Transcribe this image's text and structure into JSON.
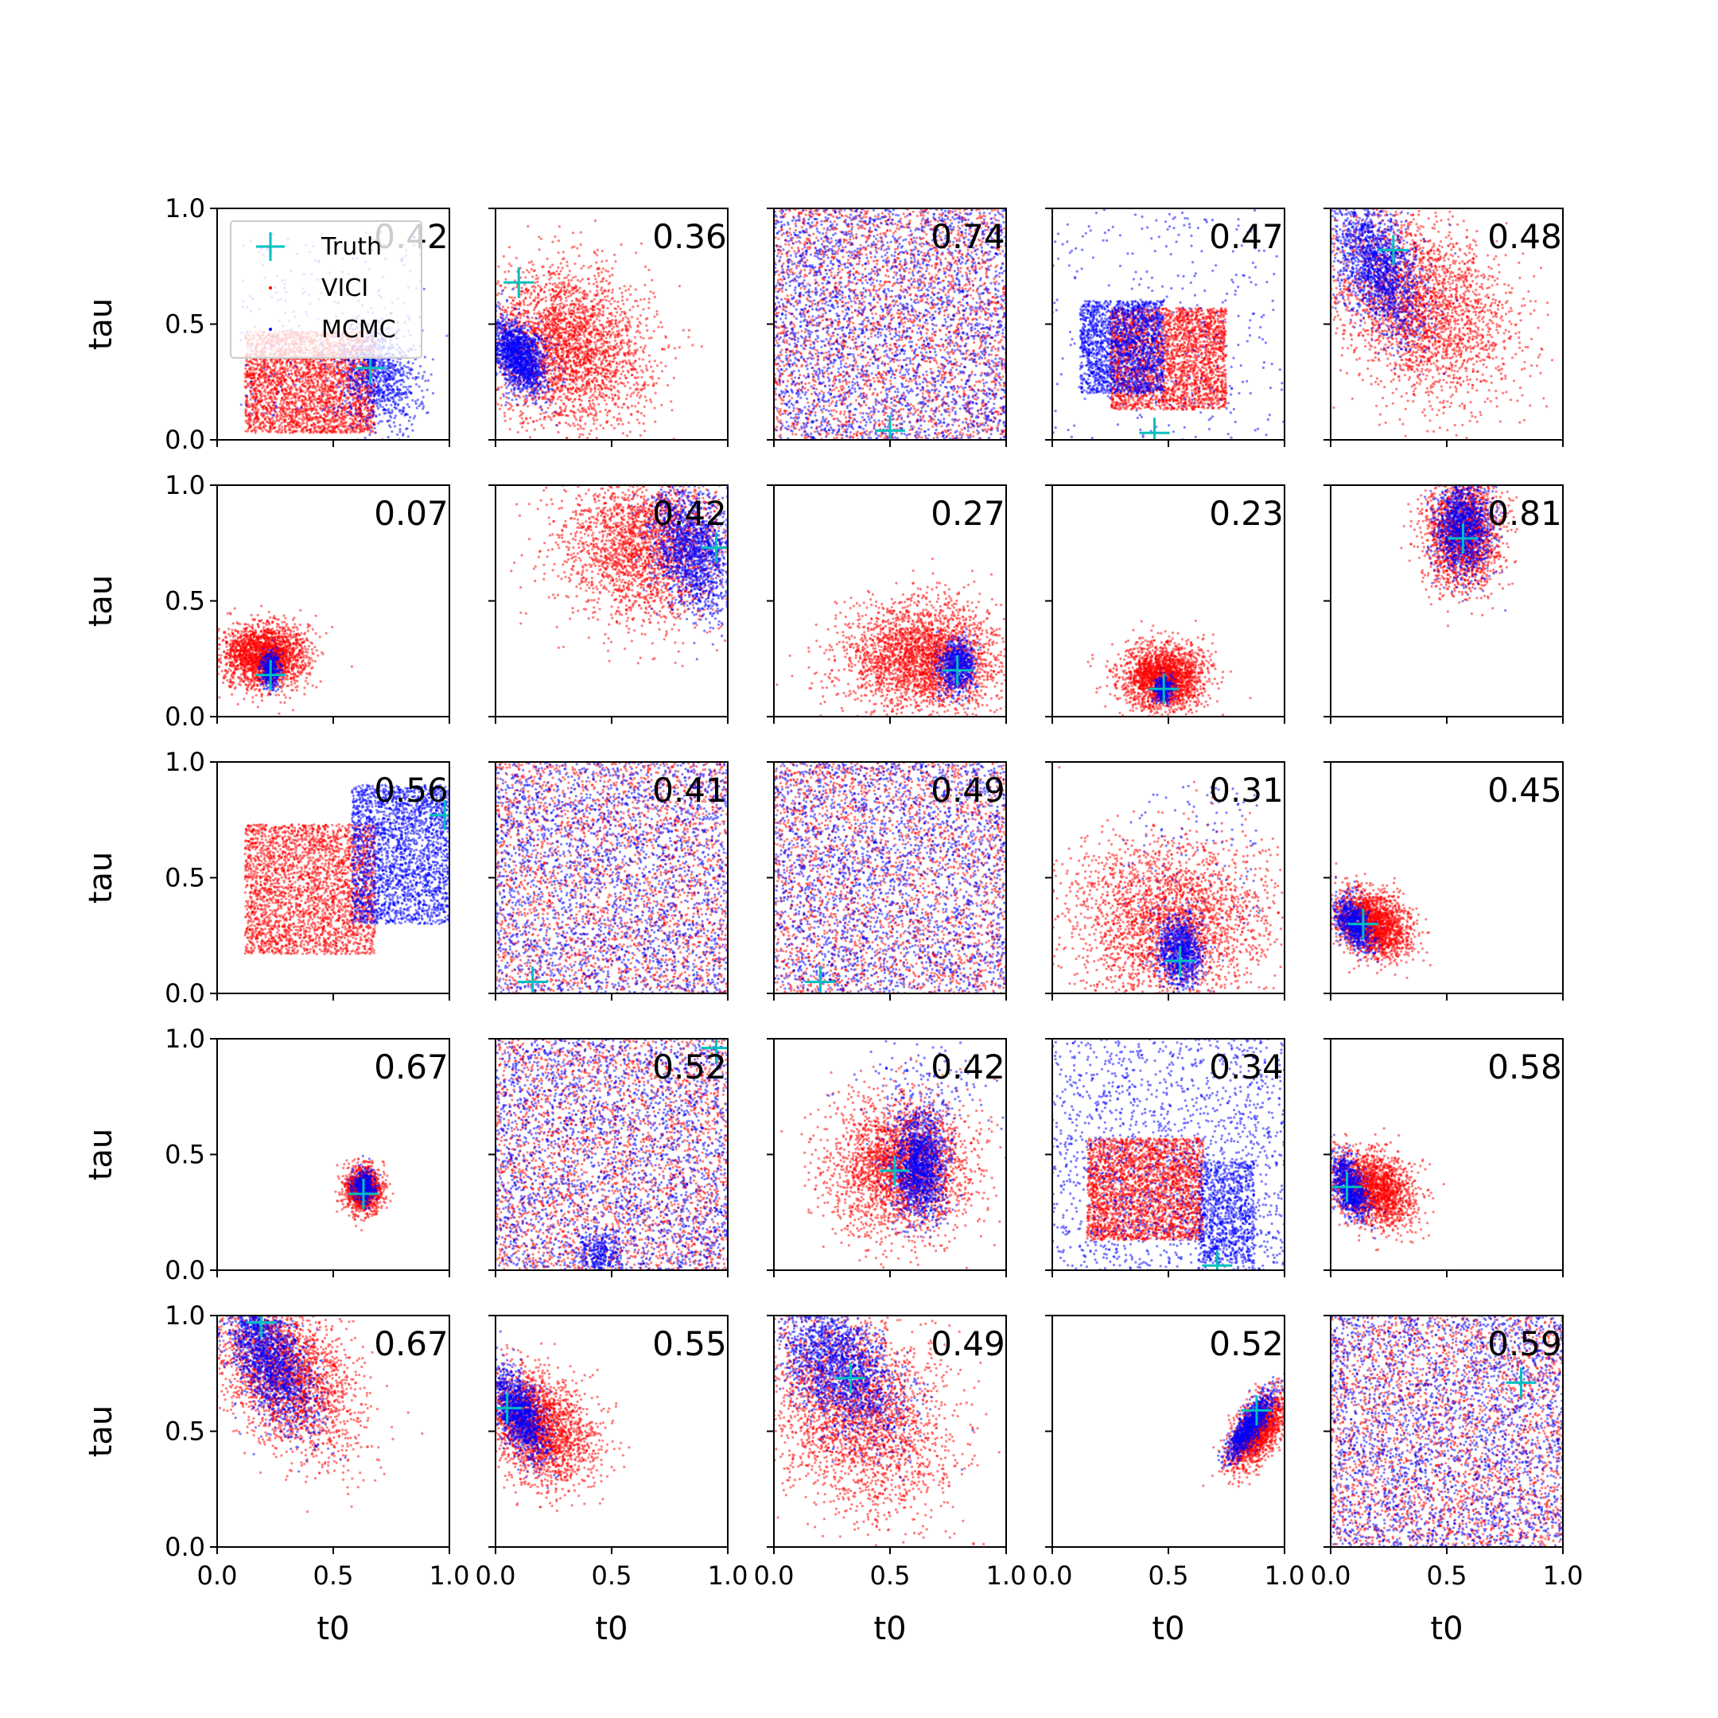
{
  "colors": {
    "vici": "#ff0000",
    "mcmc": "#0000ff",
    "truth": "#00bfbf",
    "axis": "#000000"
  },
  "legend": {
    "truth_label": "Truth",
    "vici_label": "VICI",
    "mcmc_label": "MCMC",
    "placement": "upper-left of first panel"
  },
  "chart_data": {
    "type": "scatter",
    "layout": {
      "rows": 5,
      "cols": 5
    },
    "xlabel": "t0",
    "ylabel": "tau",
    "xlim": [
      0,
      1
    ],
    "ylim": [
      0,
      1
    ],
    "tick_labels": [
      "0.0",
      "0.5",
      "1.0"
    ],
    "series_names": [
      "Truth",
      "VICI",
      "MCMC"
    ],
    "panels": [
      {
        "score": "0.42",
        "truth": [
          0.66,
          0.31
        ],
        "vici": [
          {
            "mx": 0.4,
            "my": 0.25,
            "sx": 0.28,
            "sy": 0.22,
            "rho": 0.0,
            "n": 3000,
            "fill": true
          }
        ],
        "mcmc": [
          {
            "mx": 0.7,
            "my": 0.28,
            "sx": 0.08,
            "sy": 0.12,
            "rho": -0.2,
            "n": 900,
            "fill": false
          },
          {
            "mx": 0.5,
            "my": 0.5,
            "sx": 0.4,
            "sy": 0.4,
            "rho": 0.0,
            "n": 250,
            "fill": true
          }
        ]
      },
      {
        "score": "0.36",
        "truth": [
          0.1,
          0.68
        ],
        "vici": [
          {
            "mx": 0.3,
            "my": 0.4,
            "sx": 0.18,
            "sy": 0.17,
            "rho": -0.1,
            "n": 3000,
            "fill": false
          }
        ],
        "mcmc": [
          {
            "mx": 0.1,
            "my": 0.36,
            "sx": 0.06,
            "sy": 0.08,
            "rho": -0.4,
            "n": 1500,
            "fill": false
          }
        ]
      },
      {
        "score": "0.74",
        "truth": [
          0.5,
          0.04
        ],
        "vici": [
          {
            "mx": 0.5,
            "my": 0.5,
            "sx": 0.5,
            "sy": 0.5,
            "rho": 0.0,
            "n": 2600,
            "fill": true
          }
        ],
        "mcmc": [
          {
            "mx": 0.5,
            "my": 0.5,
            "sx": 0.5,
            "sy": 0.5,
            "rho": 0.0,
            "n": 2600,
            "fill": true
          }
        ]
      },
      {
        "score": "0.47",
        "truth": [
          0.44,
          0.03
        ],
        "vici": [
          {
            "mx": 0.5,
            "my": 0.35,
            "sx": 0.25,
            "sy": 0.22,
            "rho": -0.2,
            "n": 2800,
            "fill": true
          }
        ],
        "mcmc": [
          {
            "mx": 0.3,
            "my": 0.4,
            "sx": 0.18,
            "sy": 0.2,
            "rho": -0.6,
            "n": 1800,
            "fill": true
          },
          {
            "mx": 0.5,
            "my": 0.5,
            "sx": 0.5,
            "sy": 0.5,
            "rho": 0.0,
            "n": 300,
            "fill": true
          }
        ]
      },
      {
        "score": "0.48",
        "truth": [
          0.27,
          0.82
        ],
        "vici": [
          {
            "mx": 0.38,
            "my": 0.58,
            "sx": 0.2,
            "sy": 0.2,
            "rho": -0.3,
            "n": 2800,
            "fill": false
          }
        ],
        "mcmc": [
          {
            "mx": 0.2,
            "my": 0.75,
            "sx": 0.1,
            "sy": 0.15,
            "rho": -0.5,
            "n": 1600,
            "fill": false
          }
        ]
      },
      {
        "score": "0.07",
        "truth": [
          0.23,
          0.18
        ],
        "vici": [
          {
            "mx": 0.2,
            "my": 0.26,
            "sx": 0.09,
            "sy": 0.07,
            "rho": 0.0,
            "n": 2200,
            "fill": false
          }
        ],
        "mcmc": [
          {
            "mx": 0.23,
            "my": 0.2,
            "sx": 0.02,
            "sy": 0.04,
            "rho": 0.0,
            "n": 400,
            "fill": false
          }
        ]
      },
      {
        "score": "0.42",
        "truth": [
          0.95,
          0.73
        ],
        "vici": [
          {
            "mx": 0.65,
            "my": 0.75,
            "sx": 0.18,
            "sy": 0.17,
            "rho": 0.0,
            "n": 2600,
            "fill": false
          }
        ],
        "mcmc": [
          {
            "mx": 0.85,
            "my": 0.72,
            "sx": 0.09,
            "sy": 0.14,
            "rho": -0.3,
            "n": 1500,
            "fill": false
          }
        ]
      },
      {
        "score": "0.27",
        "truth": [
          0.79,
          0.2
        ],
        "vici": [
          {
            "mx": 0.65,
            "my": 0.25,
            "sx": 0.17,
            "sy": 0.12,
            "rho": 0.0,
            "n": 2800,
            "fill": false
          }
        ],
        "mcmc": [
          {
            "mx": 0.79,
            "my": 0.22,
            "sx": 0.04,
            "sy": 0.06,
            "rho": 0.0,
            "n": 700,
            "fill": false
          }
        ]
      },
      {
        "score": "0.23",
        "truth": [
          0.48,
          0.12
        ],
        "vici": [
          {
            "mx": 0.48,
            "my": 0.17,
            "sx": 0.09,
            "sy": 0.07,
            "rho": 0.0,
            "n": 2200,
            "fill": false
          }
        ],
        "mcmc": [
          {
            "mx": 0.48,
            "my": 0.12,
            "sx": 0.02,
            "sy": 0.03,
            "rho": 0.0,
            "n": 300,
            "fill": false
          }
        ]
      },
      {
        "score": "0.81",
        "truth": [
          0.57,
          0.77
        ],
        "vici": [
          {
            "mx": 0.57,
            "my": 0.8,
            "sx": 0.08,
            "sy": 0.12,
            "rho": 0.0,
            "n": 2000,
            "fill": false
          }
        ],
        "mcmc": [
          {
            "mx": 0.57,
            "my": 0.82,
            "sx": 0.06,
            "sy": 0.1,
            "rho": 0.0,
            "n": 1200,
            "fill": false
          }
        ]
      },
      {
        "score": "0.56",
        "truth": [
          0.98,
          0.77
        ],
        "vici": [
          {
            "mx": 0.4,
            "my": 0.45,
            "sx": 0.28,
            "sy": 0.28,
            "rho": 0.0,
            "n": 2800,
            "fill": true
          }
        ],
        "mcmc": [
          {
            "mx": 0.8,
            "my": 0.6,
            "sx": 0.22,
            "sy": 0.3,
            "rho": 0.0,
            "n": 2400,
            "fill": true
          }
        ]
      },
      {
        "score": "0.41",
        "truth": [
          0.16,
          0.05
        ],
        "vici": [
          {
            "mx": 0.5,
            "my": 0.5,
            "sx": 0.5,
            "sy": 0.5,
            "rho": 0.0,
            "n": 2400,
            "fill": true
          }
        ],
        "mcmc": [
          {
            "mx": 0.5,
            "my": 0.5,
            "sx": 0.5,
            "sy": 0.5,
            "rho": 0.0,
            "n": 2400,
            "fill": true
          }
        ]
      },
      {
        "score": "0.49",
        "truth": [
          0.2,
          0.05
        ],
        "vici": [
          {
            "mx": 0.5,
            "my": 0.5,
            "sx": 0.5,
            "sy": 0.5,
            "rho": 0.0,
            "n": 2400,
            "fill": true
          }
        ],
        "mcmc": [
          {
            "mx": 0.5,
            "my": 0.5,
            "sx": 0.5,
            "sy": 0.5,
            "rho": 0.0,
            "n": 2400,
            "fill": true
          }
        ]
      },
      {
        "score": "0.31",
        "truth": [
          0.55,
          0.14
        ],
        "vici": [
          {
            "mx": 0.5,
            "my": 0.3,
            "sx": 0.22,
            "sy": 0.18,
            "rho": 0.0,
            "n": 2800,
            "fill": false
          }
        ],
        "mcmc": [
          {
            "mx": 0.55,
            "my": 0.18,
            "sx": 0.05,
            "sy": 0.08,
            "rho": 0.0,
            "n": 900,
            "fill": false
          },
          {
            "mx": 0.6,
            "my": 0.6,
            "sx": 0.3,
            "sy": 0.3,
            "rho": 0.0,
            "n": 120,
            "fill": true
          }
        ]
      },
      {
        "score": "0.45",
        "truth": [
          0.14,
          0.3
        ],
        "vici": [
          {
            "mx": 0.18,
            "my": 0.3,
            "sx": 0.08,
            "sy": 0.07,
            "rho": -0.3,
            "n": 2000,
            "fill": false
          }
        ],
        "mcmc": [
          {
            "mx": 0.1,
            "my": 0.3,
            "sx": 0.04,
            "sy": 0.06,
            "rho": -0.5,
            "n": 700,
            "fill": false
          }
        ]
      },
      {
        "score": "0.67",
        "truth": [
          0.63,
          0.33
        ],
        "vici": [
          {
            "mx": 0.63,
            "my": 0.35,
            "sx": 0.04,
            "sy": 0.05,
            "rho": 0.0,
            "n": 1200,
            "fill": false
          }
        ],
        "mcmc": [
          {
            "mx": 0.63,
            "my": 0.36,
            "sx": 0.025,
            "sy": 0.04,
            "rho": 0.0,
            "n": 400,
            "fill": false
          }
        ]
      },
      {
        "score": "0.52",
        "truth": [
          0.95,
          0.96
        ],
        "vici": [
          {
            "mx": 0.5,
            "my": 0.5,
            "sx": 0.5,
            "sy": 0.5,
            "rho": 0.0,
            "n": 2600,
            "fill": true
          }
        ],
        "mcmc": [
          {
            "mx": 0.5,
            "my": 0.5,
            "sx": 0.5,
            "sy": 0.5,
            "rho": 0.0,
            "n": 2400,
            "fill": true
          },
          {
            "mx": 0.45,
            "my": 0.08,
            "sx": 0.05,
            "sy": 0.05,
            "rho": 0.0,
            "n": 300,
            "fill": false
          }
        ]
      },
      {
        "score": "0.42",
        "truth": [
          0.52,
          0.43
        ],
        "vici": [
          {
            "mx": 0.55,
            "my": 0.45,
            "sx": 0.15,
            "sy": 0.15,
            "rho": 0.0,
            "n": 2800,
            "fill": false
          }
        ],
        "mcmc": [
          {
            "mx": 0.63,
            "my": 0.45,
            "sx": 0.06,
            "sy": 0.12,
            "rho": 0.0,
            "n": 1400,
            "fill": false
          },
          {
            "mx": 0.65,
            "my": 0.8,
            "sx": 0.15,
            "sy": 0.12,
            "rho": 0.0,
            "n": 150,
            "fill": false
          }
        ]
      },
      {
        "score": "0.34",
        "truth": [
          0.71,
          0.02
        ],
        "vici": [
          {
            "mx": 0.4,
            "my": 0.35,
            "sx": 0.25,
            "sy": 0.22,
            "rho": 0.0,
            "n": 2800,
            "fill": true
          }
        ],
        "mcmc": [
          {
            "mx": 0.5,
            "my": 0.5,
            "sx": 0.5,
            "sy": 0.5,
            "rho": 0.0,
            "n": 1500,
            "fill": true
          },
          {
            "mx": 0.75,
            "my": 0.25,
            "sx": 0.12,
            "sy": 0.22,
            "rho": 0.0,
            "n": 900,
            "fill": true
          }
        ]
      },
      {
        "score": "0.58",
        "truth": [
          0.07,
          0.36
        ],
        "vici": [
          {
            "mx": 0.18,
            "my": 0.35,
            "sx": 0.09,
            "sy": 0.08,
            "rho": -0.3,
            "n": 2000,
            "fill": false
          }
        ],
        "mcmc": [
          {
            "mx": 0.08,
            "my": 0.36,
            "sx": 0.04,
            "sy": 0.07,
            "rho": -0.5,
            "n": 800,
            "fill": false
          }
        ]
      },
      {
        "score": "0.67",
        "truth": [
          0.19,
          0.97
        ],
        "vici": [
          {
            "mx": 0.3,
            "my": 0.75,
            "sx": 0.15,
            "sy": 0.17,
            "rho": -0.4,
            "n": 2600,
            "fill": false
          }
        ],
        "mcmc": [
          {
            "mx": 0.22,
            "my": 0.82,
            "sx": 0.1,
            "sy": 0.15,
            "rho": -0.6,
            "n": 1600,
            "fill": false
          }
        ]
      },
      {
        "score": "0.55",
        "truth": [
          0.05,
          0.6
        ],
        "vici": [
          {
            "mx": 0.18,
            "my": 0.52,
            "sx": 0.12,
            "sy": 0.12,
            "rho": -0.3,
            "n": 2400,
            "fill": false
          }
        ],
        "mcmc": [
          {
            "mx": 0.1,
            "my": 0.58,
            "sx": 0.06,
            "sy": 0.1,
            "rho": -0.6,
            "n": 1200,
            "fill": false
          }
        ]
      },
      {
        "score": "0.49",
        "truth": [
          0.33,
          0.73
        ],
        "vici": [
          {
            "mx": 0.35,
            "my": 0.6,
            "sx": 0.2,
            "sy": 0.22,
            "rho": -0.3,
            "n": 2800,
            "fill": false
          }
        ],
        "mcmc": [
          {
            "mx": 0.28,
            "my": 0.78,
            "sx": 0.14,
            "sy": 0.16,
            "rho": -0.5,
            "n": 1800,
            "fill": false
          }
        ]
      },
      {
        "score": "0.52",
        "truth": [
          0.88,
          0.59
        ],
        "vici": [
          {
            "mx": 0.88,
            "my": 0.5,
            "sx": 0.06,
            "sy": 0.08,
            "rho": 0.6,
            "n": 1800,
            "fill": false
          }
        ],
        "mcmc": [
          {
            "mx": 0.85,
            "my": 0.52,
            "sx": 0.05,
            "sy": 0.07,
            "rho": 0.8,
            "n": 1000,
            "fill": false
          }
        ]
      },
      {
        "score": "0.59",
        "truth": [
          0.82,
          0.71
        ],
        "vici": [
          {
            "mx": 0.5,
            "my": 0.5,
            "sx": 0.5,
            "sy": 0.5,
            "rho": 0.0,
            "n": 2600,
            "fill": true
          }
        ],
        "mcmc": [
          {
            "mx": 0.5,
            "my": 0.5,
            "sx": 0.5,
            "sy": 0.5,
            "rho": 0.0,
            "n": 2600,
            "fill": true
          }
        ]
      }
    ]
  }
}
